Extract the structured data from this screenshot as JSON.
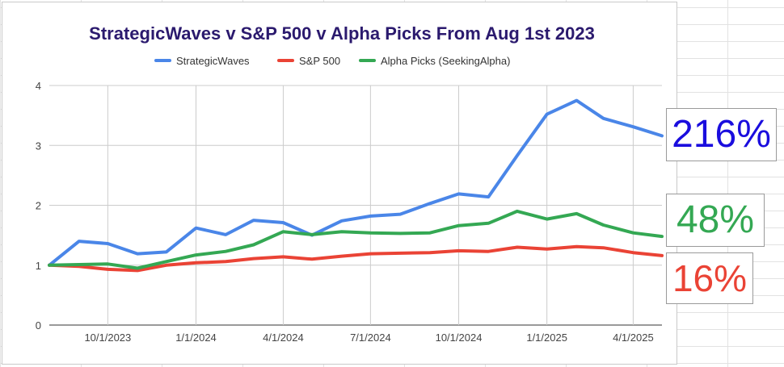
{
  "chart_data": {
    "type": "line",
    "title": "StrategicWaves v S&P 500  v Alpha Picks From Aug 1st 2023",
    "xlabel": "",
    "ylabel": "",
    "x_ticks": [
      "10/1/2023",
      "1/1/2024",
      "4/1/2024",
      "7/1/2024",
      "10/1/2024",
      "1/1/2025",
      "4/1/2025"
    ],
    "y_ticks": [
      "0",
      "1",
      "2",
      "3",
      "4"
    ],
    "ylim": [
      0,
      4
    ],
    "x": [
      "2023-08-01",
      "2023-09-01",
      "2023-10-01",
      "2023-11-01",
      "2023-12-01",
      "2024-01-01",
      "2024-02-01",
      "2024-03-01",
      "2024-04-01",
      "2024-05-01",
      "2024-06-01",
      "2024-07-01",
      "2024-08-01",
      "2024-09-01",
      "2024-10-01",
      "2024-11-01",
      "2024-12-01",
      "2025-01-01",
      "2025-02-01",
      "2025-03-01",
      "2025-04-01",
      "2025-05-01"
    ],
    "series": [
      {
        "name": "StrategicWaves",
        "color": "#4a86e8",
        "values": [
          1.0,
          1.4,
          1.36,
          1.19,
          1.22,
          1.62,
          1.51,
          1.75,
          1.71,
          1.5,
          1.74,
          1.82,
          1.85,
          2.03,
          2.19,
          2.14,
          2.83,
          3.52,
          3.75,
          3.45,
          3.31,
          3.16
        ]
      },
      {
        "name": "S&P 500",
        "color": "#ea4335",
        "values": [
          1.0,
          0.98,
          0.93,
          0.91,
          1.0,
          1.04,
          1.06,
          1.11,
          1.14,
          1.1,
          1.15,
          1.19,
          1.2,
          1.21,
          1.24,
          1.23,
          1.3,
          1.27,
          1.31,
          1.29,
          1.21,
          1.16
        ]
      },
      {
        "name": "Alpha Picks (SeekingAlpha)",
        "color": "#34a853",
        "values": [
          1.0,
          1.01,
          1.02,
          0.95,
          1.06,
          1.17,
          1.23,
          1.34,
          1.56,
          1.51,
          1.56,
          1.54,
          1.53,
          1.54,
          1.66,
          1.7,
          1.9,
          1.77,
          1.86,
          1.67,
          1.54,
          1.48
        ]
      }
    ],
    "grid": true,
    "legend": "top"
  },
  "callouts": [
    {
      "text": "216%",
      "color": "#1a0dde"
    },
    {
      "text": "48%",
      "color": "#34a853"
    },
    {
      "text": "16%",
      "color": "#ea4335"
    }
  ]
}
